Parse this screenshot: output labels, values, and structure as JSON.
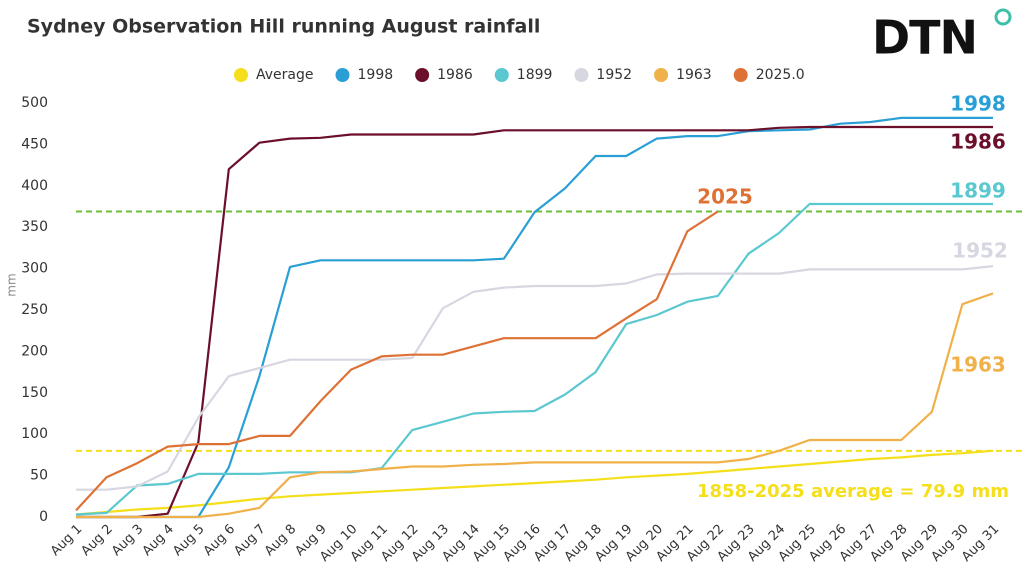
{
  "chart_data": {
    "type": "line",
    "title": "Sydney Observation Hill running August rainfall",
    "logo": "DTN",
    "ylabel": "mm",
    "categories": [
      "Aug 1",
      "Aug 2",
      "Aug 3",
      "Aug 4",
      "Aug 5",
      "Aug 6",
      "Aug 7",
      "Aug 8",
      "Aug 9",
      "Aug 10",
      "Aug 11",
      "Aug 12",
      "Aug 13",
      "Aug 14",
      "Aug 15",
      "Aug 16",
      "Aug 17",
      "Aug 18",
      "Aug 19",
      "Aug 20",
      "Aug 21",
      "Aug 22",
      "Aug 23",
      "Aug 24",
      "Aug 25",
      "Aug 26",
      "Aug 27",
      "Aug 28",
      "Aug 29",
      "Aug 30",
      "Aug 31"
    ],
    "ylim": [
      0,
      500
    ],
    "yticks": [
      0,
      50,
      100,
      150,
      200,
      250,
      300,
      350,
      400,
      450,
      500
    ],
    "grid": false,
    "legend": "top",
    "series": [
      {
        "name": "Average",
        "color": "#f4df1a",
        "values": [
          3,
          6,
          9,
          11,
          14,
          18,
          22,
          25,
          27,
          29,
          31,
          33,
          35,
          37,
          39,
          41,
          43,
          45,
          48,
          50,
          52,
          55,
          58,
          61,
          64,
          67,
          70,
          72,
          75,
          77,
          80
        ]
      },
      {
        "name": "1998",
        "color": "#2a9fd6",
        "label": "1998",
        "values": [
          0,
          0,
          0,
          0,
          0,
          60,
          170,
          302,
          310,
          310,
          310,
          310,
          310,
          310,
          312,
          368,
          397,
          436,
          436,
          457,
          460,
          460,
          466,
          467,
          468,
          475,
          477,
          482,
          482,
          482,
          482
        ]
      },
      {
        "name": "1986",
        "color": "#6b0f2a",
        "label": "1986",
        "values": [
          0,
          0,
          0,
          4,
          90,
          420,
          452,
          457,
          458,
          462,
          462,
          462,
          462,
          462,
          467,
          467,
          467,
          467,
          467,
          467,
          467,
          467,
          467,
          470,
          471,
          471,
          471,
          471,
          471,
          471,
          471
        ]
      },
      {
        "name": "1899",
        "color": "#5bc8d0",
        "label": "1899",
        "values": [
          3,
          5,
          38,
          40,
          52,
          52,
          52,
          54,
          54,
          54,
          59,
          105,
          115,
          125,
          127,
          128,
          148,
          175,
          233,
          244,
          260,
          267,
          318,
          343,
          378,
          378,
          378,
          378,
          378,
          378,
          378
        ]
      },
      {
        "name": "1952",
        "color": "#d7d7e2",
        "label": "1952",
        "values": [
          33,
          33,
          37,
          55,
          120,
          170,
          180,
          190,
          190,
          190,
          190,
          192,
          252,
          272,
          277,
          279,
          279,
          279,
          282,
          293,
          294,
          294,
          294,
          294,
          299,
          299,
          299,
          299,
          299,
          299,
          303
        ]
      },
      {
        "name": "1963",
        "color": "#f0b04a",
        "label": "1963",
        "values": [
          0,
          0,
          0,
          0,
          0,
          4,
          11,
          48,
          54,
          55,
          58,
          61,
          61,
          63,
          64,
          66,
          66,
          66,
          66,
          66,
          66,
          66,
          70,
          80,
          93,
          93,
          93,
          93,
          127,
          257,
          270
        ]
      },
      {
        "name": "2025.0",
        "color": "#de7236",
        "label": "2025",
        "values": [
          8,
          48,
          65,
          85,
          88,
          88,
          98,
          98,
          140,
          178,
          194,
          196,
          196,
          206,
          216,
          216,
          216,
          216,
          240,
          263,
          345,
          369,
          null,
          null,
          null,
          null,
          null,
          null,
          null,
          null,
          null
        ]
      }
    ],
    "reference_lines": [
      {
        "value": 369,
        "color": "#6cbf3c"
      },
      {
        "value": 79.9,
        "color": "#f4df1a"
      }
    ],
    "annotations": [
      {
        "text": "1858-2025 average = 79.9 mm",
        "color": "#f4df1a"
      }
    ]
  }
}
